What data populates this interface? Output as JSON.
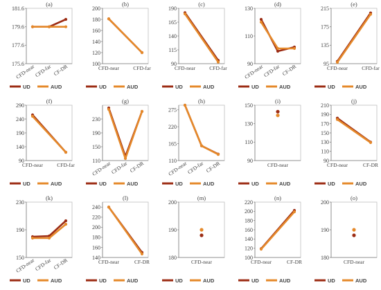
{
  "colors": {
    "UD": "#9c2c14",
    "AUD": "#e5892a"
  },
  "chart_data": [
    {
      "type": "line",
      "title": "(a)",
      "categories": [
        "CFD-near",
        "CFD-far",
        "CF-DR"
      ],
      "ylim": [
        175.6,
        181.6
      ],
      "yticks": [
        "175.6",
        "177.6",
        "179.6",
        "181.6"
      ],
      "rotate_x": true,
      "series": [
        {
          "name": "UD",
          "values": [
            179.6,
            179.6,
            180.4
          ]
        },
        {
          "name": "AUD",
          "values": [
            179.6,
            179.6,
            179.6
          ]
        }
      ]
    },
    {
      "type": "line",
      "title": "(b)",
      "categories": [
        "CFD-near",
        "CFD-far"
      ],
      "ylim": [
        100,
        200
      ],
      "yticks": [
        "100",
        "120",
        "140",
        "160",
        "180",
        "200"
      ],
      "rotate_x": false,
      "series": [
        {
          "name": "UD",
          "values": [
            181,
            120
          ]
        },
        {
          "name": "AUD",
          "values": [
            181,
            120
          ]
        }
      ]
    },
    {
      "type": "line",
      "title": "(c)",
      "categories": [
        "CFD-near",
        "CFD-far"
      ],
      "ylim": [
        90,
        190
      ],
      "yticks": [
        "90",
        "115",
        "140",
        "165",
        "190"
      ],
      "rotate_x": false,
      "series": [
        {
          "name": "UD",
          "values": [
            182,
            96
          ]
        },
        {
          "name": "AUD",
          "values": [
            180,
            93
          ]
        }
      ]
    },
    {
      "type": "line",
      "title": "(d)",
      "categories": [
        "CFD-near",
        "CFD-far",
        "CF-DR"
      ],
      "ylim": [
        90,
        130
      ],
      "yticks": [
        "90",
        "110",
        "130"
      ],
      "rotate_x": true,
      "series": [
        {
          "name": "UD",
          "values": [
            122,
            99,
            102
          ]
        },
        {
          "name": "AUD",
          "values": [
            120,
            101,
            101
          ]
        }
      ]
    },
    {
      "type": "line",
      "title": "(e)",
      "categories": [
        "CFD-near",
        "CFD-far"
      ],
      "ylim": [
        95,
        215
      ],
      "yticks": [
        "95",
        "135",
        "175",
        "215"
      ],
      "rotate_x": false,
      "series": [
        {
          "name": "UD",
          "values": [
            100,
            205
          ]
        },
        {
          "name": "AUD",
          "values": [
            98,
            202
          ]
        }
      ]
    },
    {
      "type": "line",
      "title": "(f)",
      "categories": [
        "CFD-near",
        "CFD-far"
      ],
      "ylim": [
        90,
        290
      ],
      "yticks": [
        "90",
        "140",
        "190",
        "240",
        "290"
      ],
      "rotate_x": false,
      "series": [
        {
          "name": "UD",
          "values": [
            255,
            120
          ]
        },
        {
          "name": "AUD",
          "values": [
            250,
            120
          ]
        }
      ]
    },
    {
      "type": "line",
      "title": "(g)",
      "categories": [
        "CFD-near",
        "CFD-far",
        "CF-DR"
      ],
      "ylim": [
        110,
        270
      ],
      "yticks": [
        "110",
        "150",
        "190",
        "230"
      ],
      "rotate_x": true,
      "series": [
        {
          "name": "UD",
          "values": [
            262,
            122,
            252
          ]
        },
        {
          "name": "AUD",
          "values": [
            258,
            116,
            252
          ]
        }
      ]
    },
    {
      "type": "line",
      "title": "(h)",
      "categories": [
        "CFD-near",
        "CFD-far",
        "CF-DR"
      ],
      "ylim": [
        110,
        290
      ],
      "yticks": [
        "110",
        "165",
        "220",
        "275"
      ],
      "rotate_x": true,
      "series": [
        {
          "name": "UD",
          "values": [
            290,
            158,
            131
          ]
        },
        {
          "name": "AUD",
          "values": [
            290,
            158,
            130
          ]
        }
      ]
    },
    {
      "type": "scatter",
      "title": "(i)",
      "categories": [
        "CFD-near"
      ],
      "ylim": [
        90,
        150
      ],
      "yticks": [
        "90",
        "110",
        "130",
        "150"
      ],
      "rotate_x": false,
      "series": [
        {
          "name": "UD",
          "values": [
            143
          ]
        },
        {
          "name": "AUD",
          "values": [
            139
          ]
        }
      ]
    },
    {
      "type": "line",
      "title": "(j)",
      "categories": [
        "CFD-near",
        "CF-DR"
      ],
      "ylim": [
        90,
        210
      ],
      "yticks": [
        "90",
        "110",
        "130",
        "150",
        "170",
        "190",
        "210"
      ],
      "rotate_x": false,
      "series": [
        {
          "name": "UD",
          "values": [
            182,
            130
          ]
        },
        {
          "name": "AUD",
          "values": [
            179,
            129
          ]
        }
      ]
    },
    {
      "type": "line",
      "title": "(k)",
      "categories": [
        "CFD-near",
        "CFD-far",
        "CF-DR"
      ],
      "ylim": [
        150,
        230
      ],
      "yticks": [
        "150",
        "190",
        "230"
      ],
      "rotate_x": true,
      "series": [
        {
          "name": "UD",
          "values": [
            180,
            181,
            203
          ]
        },
        {
          "name": "AUD",
          "values": [
            178,
            178,
            198
          ]
        }
      ]
    },
    {
      "type": "line",
      "title": "(l)",
      "categories": [
        "CFD-near",
        "CF-DR"
      ],
      "ylim": [
        140,
        250
      ],
      "yticks": [
        "140",
        "160",
        "180",
        "200",
        "220",
        "240"
      ],
      "rotate_x": false,
      "series": [
        {
          "name": "UD",
          "values": [
            240,
            150
          ]
        },
        {
          "name": "AUD",
          "values": [
            240,
            147
          ]
        }
      ]
    },
    {
      "type": "scatter",
      "title": "(m)",
      "categories": [
        "CFD-near"
      ],
      "ylim": [
        180,
        200
      ],
      "yticks": [
        "180",
        "190",
        "200"
      ],
      "rotate_x": false,
      "series": [
        {
          "name": "UD",
          "values": [
            188
          ]
        },
        {
          "name": "AUD",
          "values": [
            190
          ]
        }
      ]
    },
    {
      "type": "line",
      "title": "(n)",
      "categories": [
        "CFD-near",
        "CF-DR"
      ],
      "ylim": [
        100,
        220
      ],
      "yticks": [
        "100",
        "120",
        "140",
        "160",
        "180",
        "200",
        "220"
      ],
      "rotate_x": false,
      "series": [
        {
          "name": "UD",
          "values": [
            119,
            202
          ]
        },
        {
          "name": "AUD",
          "values": [
            118,
            199
          ]
        }
      ]
    },
    {
      "type": "scatter",
      "title": "(o)",
      "categories": [
        "CFD-near"
      ],
      "ylim": [
        180,
        200
      ],
      "yticks": [
        "180",
        "190",
        "200"
      ],
      "rotate_x": false,
      "series": [
        {
          "name": "UD",
          "values": [
            188
          ]
        },
        {
          "name": "AUD",
          "values": [
            190
          ]
        }
      ]
    }
  ]
}
